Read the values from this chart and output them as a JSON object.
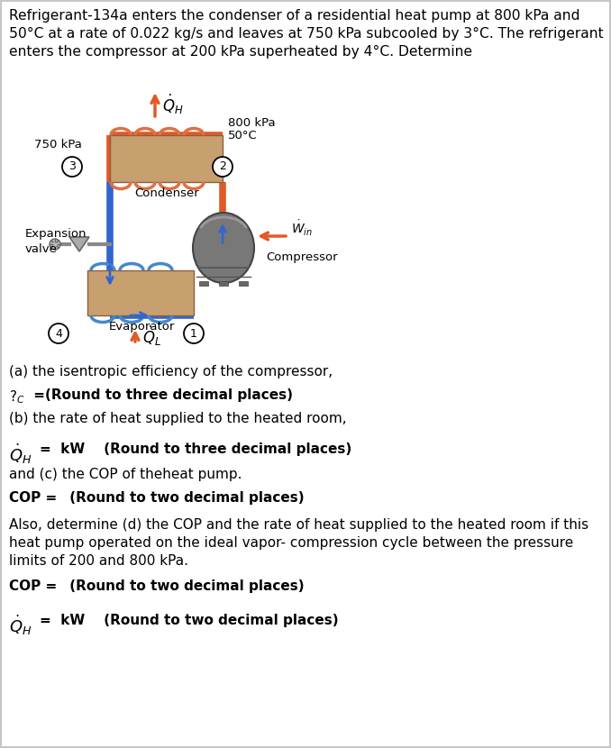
{
  "bg_color": "#ffffff",
  "border_color": "#bbbbbb",
  "intro_line1": "Refrigerant-134a enters the condenser of a residential heat pump at 800 kPa and",
  "intro_line2": "50°C at a rate of 0.022 kg/s and leaves at 750 kPa subcooled by 3°C. The refrigerant",
  "intro_line3": "enters the compressor at 200 kPa superheated by 4°C. Determine",
  "orange": "#E05A28",
  "blue": "#3366CC",
  "heat_ex_fill": "#C8A070",
  "heat_ex_edge": "#8B6040",
  "coil_orange": "#E07040",
  "coil_blue": "#4488CC",
  "part_a_text": "(a) the isentropic efficiency of the compressor,",
  "part_b_text": "(b) the rate of heat supplied to the heated room,",
  "part_c_text": "and (c) the COP of theheat pump.",
  "part_d_line1": "Also, determine (d) the COP and the rate of heat supplied to the heated room if this",
  "part_d_line2": "heat pump operated on the ideal vapor- compression cycle between the pressure",
  "part_d_line3": "limits of 200 and 800 kPa."
}
